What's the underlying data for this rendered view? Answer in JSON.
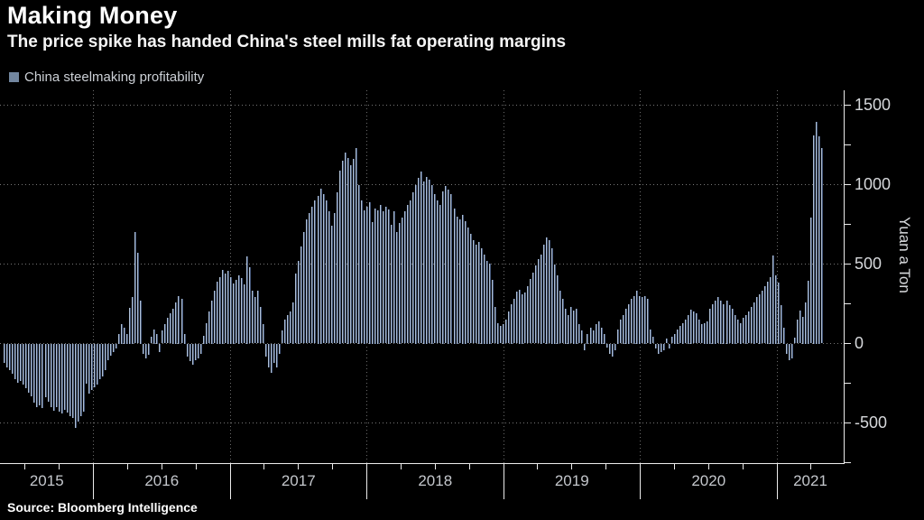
{
  "header": {
    "title": "Making Money",
    "subtitle": "The price spike has handed China's steel mills fat operating margins"
  },
  "legend": {
    "label": "China steelmaking profitability"
  },
  "source": "Source: Bloomberg Intelligence",
  "colors": {
    "background": "#000000",
    "legend_swatch": "#72869f",
    "bar_light": "#aebfd4",
    "bar_dark": "#45577a",
    "axis": "#ececec",
    "grid": "#d8d8d8",
    "tick_label": "#d6d8db"
  },
  "chart_data": {
    "type": "bar",
    "title": "China steelmaking profitability",
    "xlabel": "",
    "ylabel": "Yuan a Ton",
    "ylim": [
      -760,
      1590
    ],
    "ytick_labeled": [
      1500,
      1000,
      500,
      0,
      -500
    ],
    "ytick_minor_step": 250,
    "grid": "dotted",
    "legend_position": "top-left",
    "x_unit": "weekly bars, May 2015 - Apr 2021",
    "year_labels": [
      "2015",
      "2016",
      "2017",
      "2018",
      "2019",
      "2020",
      "2021"
    ],
    "bars_per_full_year": 50,
    "bars_first_year": 33,
    "bars_last_year": 18,
    "values": [
      -120,
      -148,
      -163,
      -186,
      -224,
      -247,
      -234,
      -253,
      -281,
      -304,
      -329,
      -367,
      -395,
      -386,
      -405,
      -338,
      -361,
      -395,
      -418,
      -395,
      -424,
      -437,
      -414,
      -430,
      -452,
      -468,
      -528,
      -490,
      -452,
      -424,
      -250,
      -310,
      -291,
      -272,
      -253,
      -224,
      -205,
      -167,
      -100,
      -72,
      -53,
      -30,
      60,
      125,
      100,
      60,
      227,
      295,
      700,
      570,
      270,
      -60,
      -90,
      -70,
      40,
      90,
      60,
      -50,
      80,
      120,
      160,
      190,
      220,
      260,
      300,
      280,
      60,
      -80,
      -110,
      -130,
      -100,
      -90,
      -60,
      50,
      130,
      200,
      270,
      330,
      390,
      420,
      465,
      440,
      460,
      420,
      380,
      400,
      430,
      410,
      370,
      550,
      480,
      330,
      290,
      330,
      230,
      120,
      -80,
      -150,
      -180,
      -120,
      -150,
      -60,
      80,
      150,
      180,
      200,
      260,
      440,
      520,
      610,
      700,
      780,
      820,
      860,
      900,
      930,
      975,
      940,
      900,
      830,
      740,
      820,
      950,
      1090,
      1150,
      1200,
      1170,
      1120,
      1160,
      1230,
      1000,
      900,
      840,
      860,
      890,
      767,
      850,
      840,
      870,
      830,
      860,
      845,
      745,
      830,
      700,
      760,
      790,
      830,
      870,
      900,
      950,
      1000,
      1040,
      1080,
      1020,
      1050,
      1030,
      1000,
      940,
      900,
      870,
      960,
      990,
      970,
      940,
      850,
      800,
      780,
      810,
      770,
      730,
      690,
      650,
      620,
      640,
      600,
      560,
      520,
      505,
      400,
      230,
      130,
      110,
      125,
      150,
      200,
      250,
      280,
      325,
      340,
      310,
      320,
      360,
      405,
      445,
      490,
      530,
      560,
      620,
      670,
      650,
      600,
      500,
      430,
      330,
      280,
      220,
      180,
      230,
      210,
      220,
      120,
      80,
      -40,
      60,
      100,
      80,
      120,
      140,
      100,
      60,
      -20,
      -60,
      -80,
      -40,
      90,
      150,
      180,
      220,
      250,
      280,
      300,
      335,
      300,
      290,
      300,
      280,
      90,
      40,
      -30,
      -60,
      -50,
      -40,
      30,
      -30,
      40,
      60,
      90,
      110,
      130,
      150,
      180,
      215,
      200,
      190,
      150,
      120,
      130,
      140,
      220,
      250,
      270,
      290,
      270,
      250,
      270,
      240,
      220,
      180,
      150,
      130,
      160,
      180,
      200,
      230,
      260,
      290,
      310,
      330,
      360,
      390,
      420,
      555,
      430,
      385,
      240,
      100,
      -60,
      -100,
      -90,
      35,
      150,
      205,
      170,
      260,
      395,
      790,
      1310,
      1395,
      1305,
      1230
    ]
  }
}
